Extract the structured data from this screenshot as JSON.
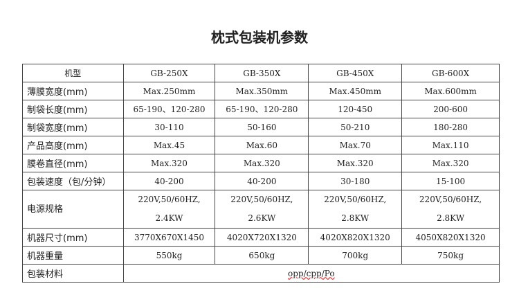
{
  "title": "枕式包装机参数",
  "header": {
    "label": "机型",
    "models": [
      "GB-250X",
      "GB-350X",
      "GB-450X",
      "GB-600X"
    ]
  },
  "rows": [
    {
      "label": "薄膜宽度(mm)",
      "values": [
        "Max.250mm",
        "Max.350mm",
        "Max.450mm",
        "Max.600mm"
      ]
    },
    {
      "label": "制袋长度(mm)",
      "values": [
        "65-190、120-280",
        "65-190、120-280",
        "120-450",
        "200-600"
      ]
    },
    {
      "label": "制袋宽度(mm)",
      "values": [
        "30-110",
        "50-160",
        "50-210",
        "180-280"
      ]
    },
    {
      "label": "产品高度(mm)",
      "values": [
        "Max.45",
        "Max.60",
        "Max.70",
        "Max.110"
      ]
    },
    {
      "label": "膜卷直径(mm)",
      "values": [
        "Max.320",
        "Max.320",
        "Max.320",
        "Max.320"
      ]
    },
    {
      "label": "包装速度（包/分钟）",
      "values": [
        "40-200",
        "40-200",
        "30-180",
        "15-100"
      ]
    }
  ],
  "power": {
    "label": "电源规格",
    "line1": [
      "220V,50/60HZ,",
      "220V,50/60HZ,",
      "220V,50/60HZ,",
      "220V,50/60HZ,"
    ],
    "line2": [
      "2.4KW",
      "2.6KW",
      "2.8KW",
      "2.8KW"
    ]
  },
  "rows2": [
    {
      "label": "机器尺寸(mm)",
      "values": [
        "3770X670X1450",
        "4020X720X1320",
        "4020X820X1320",
        "4050X820X1320"
      ]
    },
    {
      "label": "机器重量",
      "values": [
        "550kg",
        "650kg",
        "700kg",
        "750kg"
      ]
    }
  ],
  "material": {
    "label": "包装材料",
    "value": "opp/cpp/Po"
  }
}
